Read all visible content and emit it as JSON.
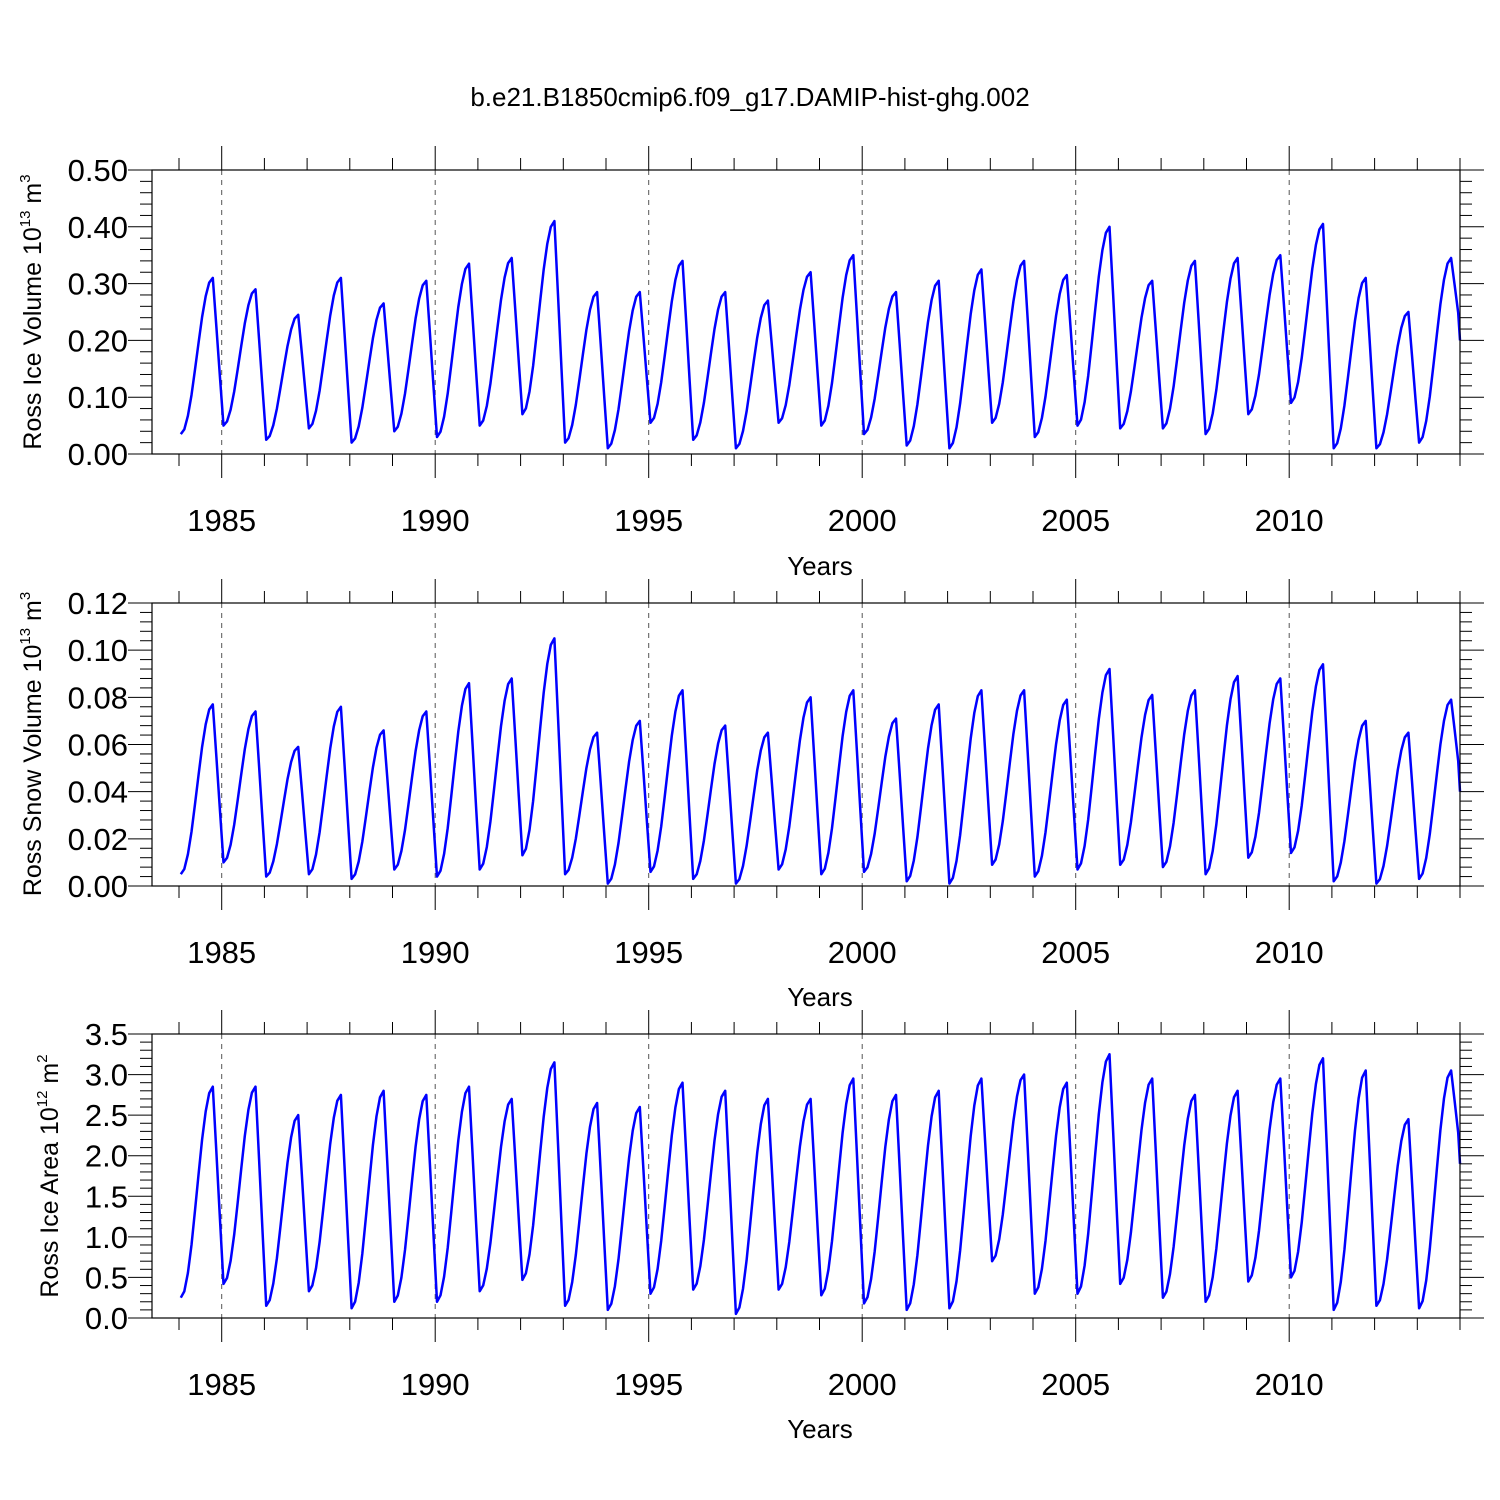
{
  "figure": {
    "title": "b.e21.B1850cmip6.f09_g17.DAMIP-hist-ghg.002"
  },
  "chart_data": [
    {
      "type": "line",
      "ylabel": {
        "prefix": "Ross Ice Volume 10",
        "exp": "13",
        "mid": " m",
        "unit_exp": "3"
      },
      "xlabel": "Years",
      "xlim": [
        1984,
        2014
      ],
      "ylim": [
        0,
        0.5
      ],
      "x_ticks": [
        1985,
        1990,
        1995,
        2000,
        2005,
        2010
      ],
      "x_tick_labels": [
        "1985",
        "1990",
        "1995",
        "2000",
        "2005",
        "2010"
      ],
      "y_ticks": [
        0,
        0.1,
        0.2,
        0.3,
        0.4,
        0.5
      ],
      "y_tick_labels": [
        "0.00",
        "0.10",
        "0.20",
        "0.30",
        "0.40",
        "0.50"
      ],
      "grid": "vertical dashed at major x ticks",
      "line_color": "#0000ff",
      "series": [
        {
          "start_year": 1984,
          "months_per_year": 12,
          "peaks": [
            0.31,
            0.29,
            0.245,
            0.31,
            0.265,
            0.305,
            0.335,
            0.345,
            0.41,
            0.285,
            0.285,
            0.34,
            0.285,
            0.27,
            0.32,
            0.35,
            0.285,
            0.305,
            0.325,
            0.34,
            0.315,
            0.4,
            0.305,
            0.34,
            0.345,
            0.35,
            0.405,
            0.31,
            0.25,
            0.345
          ],
          "troughs": [
            0.035,
            0.05,
            0.025,
            0.045,
            0.02,
            0.04,
            0.03,
            0.05,
            0.07,
            0.02,
            0.01,
            0.055,
            0.025,
            0.01,
            0.055,
            0.05,
            0.035,
            0.015,
            0.01,
            0.055,
            0.03,
            0.05,
            0.045,
            0.045,
            0.035,
            0.07,
            0.09,
            0.01,
            0.01,
            0.02
          ],
          "end_value": 0.2
        }
      ]
    },
    {
      "type": "line",
      "ylabel": {
        "prefix": "Ross Snow Volume 10",
        "exp": "13",
        "mid": " m",
        "unit_exp": "3"
      },
      "xlabel": "Years",
      "xlim": [
        1984,
        2014
      ],
      "ylim": [
        0,
        0.12
      ],
      "x_ticks": [
        1985,
        1990,
        1995,
        2000,
        2005,
        2010
      ],
      "x_tick_labels": [
        "1985",
        "1990",
        "1995",
        "2000",
        "2005",
        "2010"
      ],
      "y_ticks": [
        0,
        0.02,
        0.04,
        0.06,
        0.08,
        0.1,
        0.12
      ],
      "y_tick_labels": [
        "0.00",
        "0.02",
        "0.04",
        "0.06",
        "0.08",
        "0.10",
        "0.12"
      ],
      "grid": "vertical dashed at major x ticks",
      "line_color": "#0000ff",
      "series": [
        {
          "start_year": 1984,
          "months_per_year": 12,
          "peaks": [
            0.077,
            0.074,
            0.059,
            0.076,
            0.066,
            0.074,
            0.086,
            0.088,
            0.105,
            0.065,
            0.07,
            0.083,
            0.068,
            0.065,
            0.08,
            0.083,
            0.071,
            0.077,
            0.083,
            0.083,
            0.079,
            0.092,
            0.081,
            0.083,
            0.089,
            0.088,
            0.094,
            0.07,
            0.065,
            0.079
          ],
          "troughs": [
            0.005,
            0.01,
            0.004,
            0.005,
            0.003,
            0.007,
            0.004,
            0.007,
            0.013,
            0.005,
            0.001,
            0.006,
            0.003,
            0.001,
            0.007,
            0.005,
            0.006,
            0.002,
            0.001,
            0.009,
            0.004,
            0.007,
            0.009,
            0.008,
            0.005,
            0.012,
            0.014,
            0.002,
            0.001,
            0.003
          ],
          "end_value": 0.04
        }
      ]
    },
    {
      "type": "line",
      "ylabel": {
        "prefix": "Ross Ice Area 10",
        "exp": "12",
        "mid": " m",
        "unit_exp": "2"
      },
      "xlabel": "Years",
      "xlim": [
        1984,
        2014
      ],
      "ylim": [
        0,
        3.5
      ],
      "x_ticks": [
        1985,
        1990,
        1995,
        2000,
        2005,
        2010
      ],
      "x_tick_labels": [
        "1985",
        "1990",
        "1995",
        "2000",
        "2005",
        "2010"
      ],
      "y_ticks": [
        0,
        0.5,
        1,
        1.5,
        2,
        2.5,
        3,
        3.5
      ],
      "y_tick_labels": [
        "0.0",
        "0.5",
        "1.0",
        "1.5",
        "2.0",
        "2.5",
        "3.0",
        "3.5"
      ],
      "grid": "vertical dashed at major x ticks",
      "line_color": "#0000ff",
      "series": [
        {
          "start_year": 1984,
          "months_per_year": 12,
          "peaks": [
            2.85,
            2.85,
            2.5,
            2.75,
            2.8,
            2.75,
            2.85,
            2.7,
            3.15,
            2.65,
            2.6,
            2.9,
            2.8,
            2.7,
            2.7,
            2.95,
            2.75,
            2.8,
            2.95,
            3.0,
            2.9,
            3.25,
            2.95,
            2.75,
            2.8,
            2.95,
            3.2,
            3.05,
            2.45,
            3.05
          ],
          "troughs": [
            0.25,
            0.42,
            0.15,
            0.33,
            0.12,
            0.2,
            0.2,
            0.33,
            0.47,
            0.15,
            0.1,
            0.3,
            0.35,
            0.05,
            0.35,
            0.28,
            0.18,
            0.1,
            0.12,
            0.7,
            0.3,
            0.3,
            0.42,
            0.25,
            0.2,
            0.45,
            0.5,
            0.1,
            0.15,
            0.12
          ],
          "end_value": 1.9
        }
      ]
    }
  ]
}
